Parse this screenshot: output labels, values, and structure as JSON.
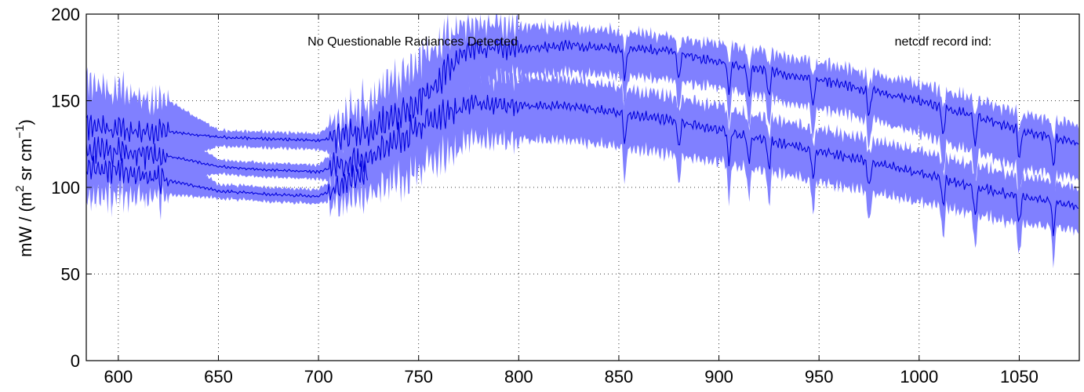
{
  "chart_data": {
    "type": "area",
    "title": "",
    "xlabel": "",
    "ylabel": {
      "prefix": "mW / (m",
      "sup1": "2",
      "mid": " sr cm",
      "sup2": "−1",
      "suffix": ")"
    },
    "xlim": [
      584,
      1080
    ],
    "ylim": [
      0,
      200
    ],
    "xticks": [
      600,
      650,
      700,
      750,
      800,
      850,
      900,
      950,
      1000,
      1050
    ],
    "yticks": [
      0,
      50,
      100,
      150,
      200
    ],
    "grid": true,
    "annotations": [
      {
        "text": "No Questionable Radiances Detected",
        "x": 747
      },
      {
        "text": "netcdf record ind:",
        "x": 1012
      }
    ],
    "colors": {
      "line": "#0000dd",
      "band": "#8080ff"
    },
    "series": [
      {
        "x": [
          584,
          600,
          625,
          650,
          675,
          700,
          725,
          750,
          775,
          800,
          825,
          850,
          875,
          900,
          925,
          950,
          975,
          1000,
          1025,
          1050,
          1080
        ],
        "mean": [
          135,
          133,
          132,
          129,
          128,
          127,
          132,
          150,
          180,
          180,
          182,
          180,
          179,
          172,
          167,
          162,
          156,
          150,
          142,
          133,
          125
        ],
        "upper": [
          160,
          155,
          150,
          133,
          132,
          131,
          150,
          175,
          195,
          193,
          193,
          190,
          187,
          183,
          178,
          172,
          166,
          160,
          152,
          143,
          135
        ],
        "lower": [
          105,
          108,
          112,
          124,
          123,
          122,
          115,
          130,
          160,
          165,
          167,
          165,
          163,
          158,
          152,
          146,
          140,
          132,
          122,
          112,
          105
        ]
      },
      {
        "x": [
          584,
          600,
          625,
          650,
          675,
          700,
          725,
          750,
          775,
          800,
          825,
          850,
          875,
          900,
          925,
          950,
          975,
          1000,
          1025,
          1050,
          1080
        ],
        "mean": [
          122,
          120,
          118,
          112,
          110,
          109,
          118,
          135,
          148,
          147,
          147,
          143,
          139,
          133,
          127,
          121,
          115,
          108,
          101,
          95,
          89
        ],
        "upper": [
          145,
          140,
          135,
          116,
          114,
          113,
          140,
          160,
          165,
          163,
          163,
          158,
          153,
          147,
          140,
          134,
          128,
          121,
          114,
          107,
          100
        ],
        "lower": [
          100,
          102,
          104,
          108,
          106,
          105,
          100,
          112,
          128,
          128,
          128,
          124,
          120,
          115,
          110,
          104,
          98,
          92,
          86,
          80,
          76
        ]
      },
      {
        "x": [
          584,
          600,
          625,
          650,
          675,
          700,
          725
        ],
        "mean": [
          112,
          110,
          104,
          98,
          96,
          95,
          108
        ],
        "upper": [
          130,
          128,
          120,
          102,
          100,
          99,
          120
        ],
        "lower": [
          98,
          98,
          96,
          94,
          92,
          91,
          96
        ]
      }
    ]
  }
}
